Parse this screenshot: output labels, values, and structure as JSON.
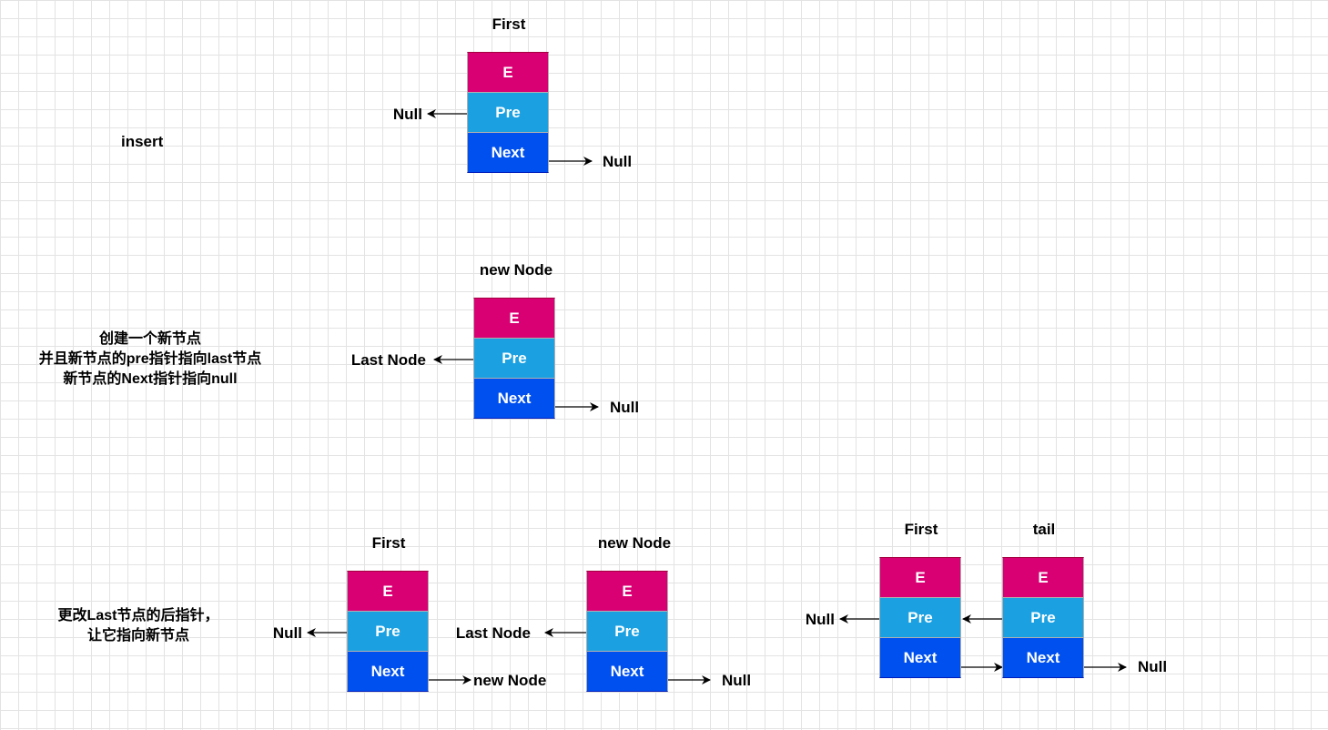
{
  "notes": {
    "insert": "insert",
    "step1": [
      "创建一个新节点",
      "并且新节点的pre指针指向last节点",
      "新节点的Next指针指向null"
    ],
    "step2": [
      "更改Last节点的后指针，",
      "让它指向新节点"
    ]
  },
  "node_fields": {
    "e": "E",
    "pre": "Pre",
    "next": "Next"
  },
  "diagram1": {
    "title": "First",
    "pre_target": "Null",
    "next_target": "Null"
  },
  "diagram2": {
    "title": "new Node",
    "pre_target": "Last Node",
    "next_target": "Null"
  },
  "diagram3": {
    "first_title": "First",
    "first_pre_target": "Null",
    "first_next_target": "new Node",
    "new_title": "new Node",
    "new_pre_target": "Last Node",
    "new_next_target": "Null"
  },
  "diagram4": {
    "first_title": "First",
    "first_pre_target": "Null",
    "tail_title": "tail",
    "tail_next_target": "Null"
  },
  "colors": {
    "e_cell": "#d80073",
    "pre_cell": "#1ba1e2",
    "next_cell": "#0050ef",
    "grid": "#e3e3e3"
  }
}
